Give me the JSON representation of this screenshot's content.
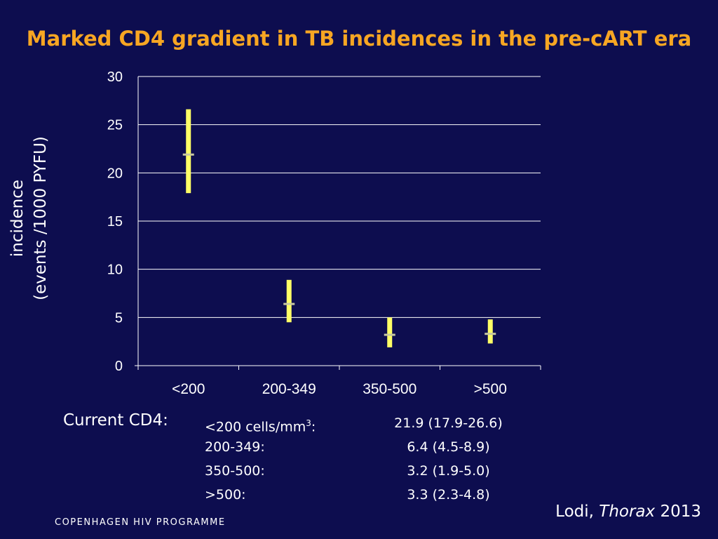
{
  "slide": {
    "title": "Marked CD4 gradient in TB incidences in the pre-cART era",
    "citation_author": "Lodi, ",
    "citation_journal": "Thorax",
    "citation_year": " 2013",
    "footer": "COPENHAGEN HIV PROGRAMME"
  },
  "chart_data": {
    "type": "scatter",
    "title": "",
    "ylabel_line1": "incidence",
    "ylabel_line2": "(events /1000 PYFU)",
    "xlabel": "",
    "categories": [
      "<200",
      "200-349",
      "350-500",
      ">500"
    ],
    "values": [
      21.9,
      6.4,
      3.2,
      3.3
    ],
    "ci_low": [
      17.9,
      4.5,
      1.9,
      2.3
    ],
    "ci_high": [
      26.6,
      8.9,
      5.0,
      4.8
    ],
    "yticks": [
      "0",
      "5",
      "10",
      "15",
      "20",
      "25",
      "30"
    ],
    "ylim": [
      0,
      30
    ],
    "grid": true,
    "colors": {
      "interval": "#ffff66",
      "point": "#c8c8a0",
      "grid": "#ffffff",
      "axis": "#ffffff"
    }
  },
  "cd4_table": {
    "label": "Current CD4:",
    "rows": [
      {
        "category": "<200 cells/mm",
        "sup": "3",
        "suffix": ":",
        "value": "21.9 (17.9-26.6)"
      },
      {
        "category": "200-349:",
        "sup": "",
        "suffix": "",
        "value": "6.4 (4.5-8.9)"
      },
      {
        "category": "350-500:",
        "sup": "",
        "suffix": "",
        "value": "3.2 (1.9-5.0)"
      },
      {
        "category": ">500:",
        "sup": "",
        "suffix": "",
        "value": "3.3 (2.3-4.8)"
      }
    ]
  }
}
